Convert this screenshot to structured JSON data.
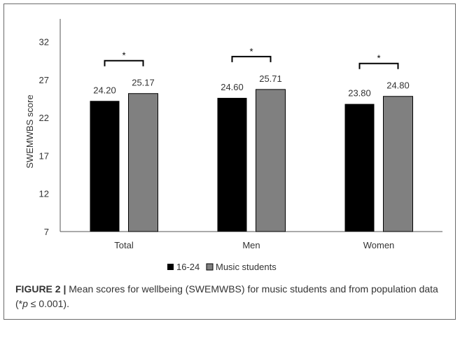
{
  "chart_data": {
    "type": "bar",
    "ylabel": "SWEMWBS score",
    "ylim": [
      7,
      35
    ],
    "yticks": [
      7,
      12,
      17,
      22,
      27,
      32
    ],
    "categories": [
      "Total",
      "Men",
      "Women"
    ],
    "series": [
      {
        "name": "16-24",
        "values": [
          24.2,
          24.6,
          23.8
        ],
        "labels": [
          "24.20",
          "24.60",
          "23.80"
        ],
        "color": "#000000"
      },
      {
        "name": "Music students",
        "values": [
          25.17,
          25.71,
          24.8
        ],
        "labels": [
          "25.17",
          "25.71",
          "24.80"
        ],
        "color": "#808080"
      }
    ],
    "significance": [
      "*",
      "*",
      "*"
    ],
    "grid": false,
    "legend_position": "bottom"
  },
  "caption": {
    "label": "FIGURE 2 |",
    "text_before": " Mean scores for wellbeing (SWEMWBS) for music students and from population data (*",
    "p_symbol": "p",
    "text_after": " ≤ 0.001)."
  }
}
